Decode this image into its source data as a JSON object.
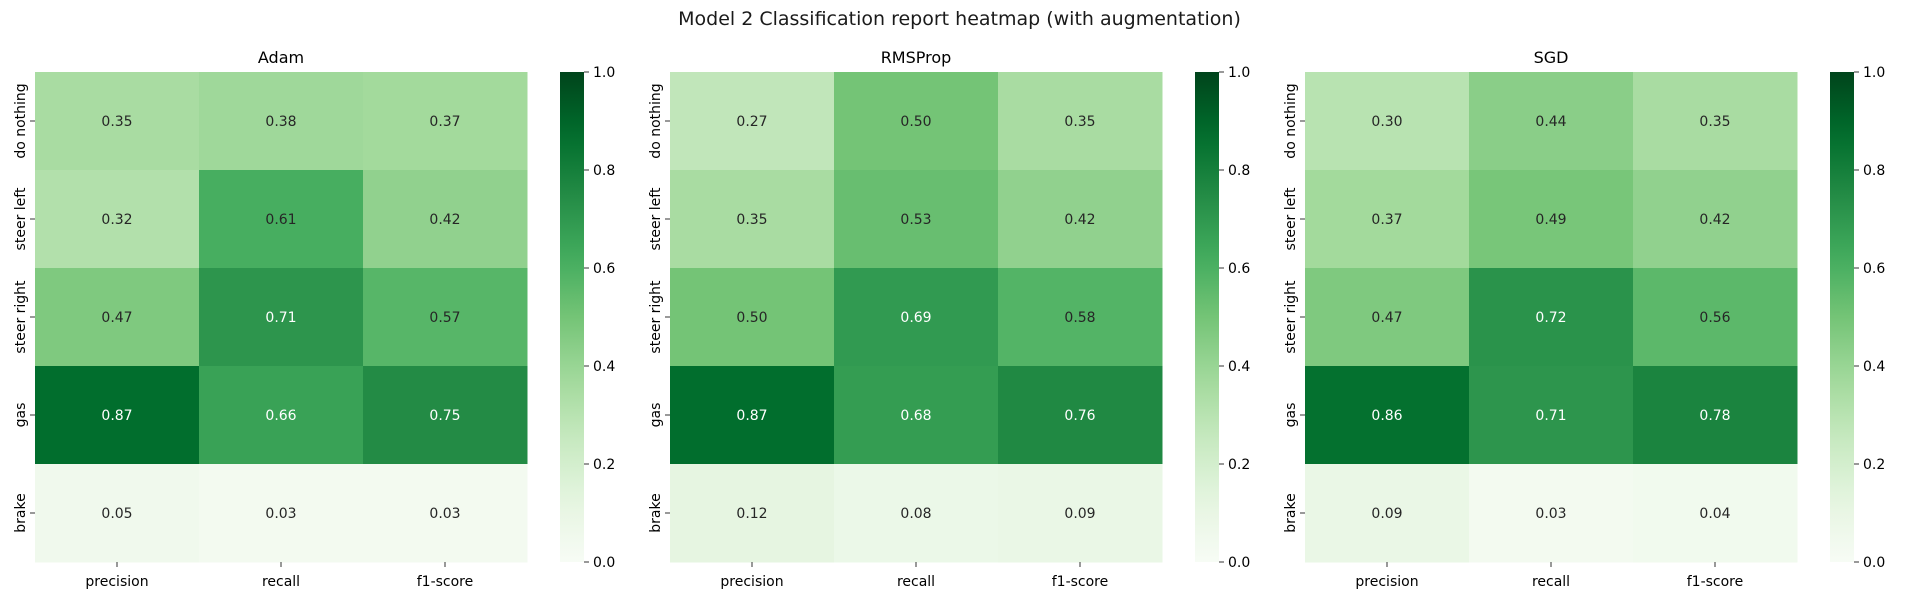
{
  "figure": {
    "suptitle": "Model 2 Classification report heatmap (with augmentation)"
  },
  "colormap": {
    "name": "Greens",
    "stops": [
      "#f7fcf5",
      "#e5f5e0",
      "#c7e9c0",
      "#a1d99b",
      "#74c476",
      "#41ab5d",
      "#238b45",
      "#006d2c",
      "#00441b"
    ]
  },
  "chart_data": [
    {
      "type": "heatmap",
      "title": "Adam",
      "x_categories": [
        "precision",
        "recall",
        "f1-score"
      ],
      "y_categories": [
        "do nothing",
        "steer left",
        "steer right",
        "gas",
        "brake"
      ],
      "values": [
        [
          0.35,
          0.38,
          0.37
        ],
        [
          0.32,
          0.61,
          0.42
        ],
        [
          0.47,
          0.71,
          0.57
        ],
        [
          0.87,
          0.66,
          0.75
        ],
        [
          0.05,
          0.03,
          0.03
        ]
      ],
      "vmin": 0.0,
      "vmax": 1.0,
      "colorbar_ticks": [
        "0.0",
        "0.2",
        "0.4",
        "0.6",
        "0.8",
        "1.0"
      ]
    },
    {
      "type": "heatmap",
      "title": "RMSProp",
      "x_categories": [
        "precision",
        "recall",
        "f1-score"
      ],
      "y_categories": [
        "do nothing",
        "steer left",
        "steer right",
        "gas",
        "brake"
      ],
      "values": [
        [
          0.27,
          0.5,
          0.35
        ],
        [
          0.35,
          0.53,
          0.42
        ],
        [
          0.5,
          0.69,
          0.58
        ],
        [
          0.87,
          0.68,
          0.76
        ],
        [
          0.12,
          0.08,
          0.09
        ]
      ],
      "vmin": 0.0,
      "vmax": 1.0,
      "colorbar_ticks": [
        "0.0",
        "0.2",
        "0.4",
        "0.6",
        "0.8",
        "1.0"
      ]
    },
    {
      "type": "heatmap",
      "title": "SGD",
      "x_categories": [
        "precision",
        "recall",
        "f1-score"
      ],
      "y_categories": [
        "do nothing",
        "steer left",
        "steer right",
        "gas",
        "brake"
      ],
      "values": [
        [
          0.3,
          0.44,
          0.35
        ],
        [
          0.37,
          0.49,
          0.42
        ],
        [
          0.47,
          0.72,
          0.56
        ],
        [
          0.86,
          0.71,
          0.78
        ],
        [
          0.09,
          0.03,
          0.04
        ]
      ],
      "vmin": 0.0,
      "vmax": 1.0,
      "colorbar_ticks": [
        "0.0",
        "0.2",
        "0.4",
        "0.6",
        "0.8",
        "1.0"
      ]
    }
  ]
}
